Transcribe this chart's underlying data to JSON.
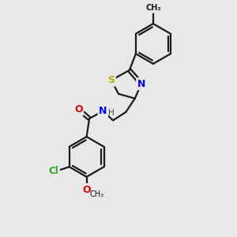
{
  "background_color": "#e8e8e8",
  "bond_color": "#1a1a1a",
  "bond_lw": 1.6,
  "atom_colors": {
    "N": "#0000ee",
    "O": "#dd0000",
    "S": "#bbaa00",
    "Cl": "#22aa22",
    "H": "#555555"
  },
  "figsize": [
    3.0,
    3.0
  ],
  "dpi": 100,
  "xlim": [
    30,
    230
  ],
  "ylim": [
    20,
    280
  ]
}
